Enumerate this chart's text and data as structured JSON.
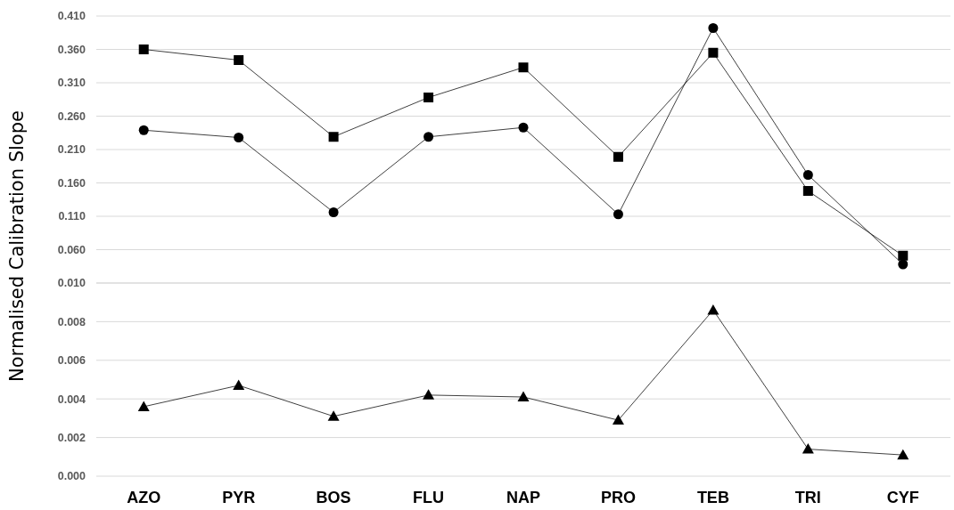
{
  "chart_data": [
    {
      "type": "line",
      "ylabel": "Normalised Calibration Slope",
      "ylim": [
        0.01,
        0.41
      ],
      "yticks": [
        {
          "value": 0.01,
          "label": "0.010"
        },
        {
          "value": 0.06,
          "label": "0.060"
        },
        {
          "value": 0.11,
          "label": "0.110"
        },
        {
          "value": 0.16,
          "label": "0.160"
        },
        {
          "value": 0.21,
          "label": "0.210"
        },
        {
          "value": 0.26,
          "label": "0.260"
        },
        {
          "value": 0.31,
          "label": "0.310"
        },
        {
          "value": 0.36,
          "label": "0.360"
        },
        {
          "value": 0.41,
          "label": "0.410"
        }
      ],
      "grid": "y",
      "tick_labels": "y",
      "series": [
        {
          "color": "#000000",
          "marker": "square",
          "values": [
            0.36,
            0.344,
            0.229,
            0.288,
            0.333,
            0.199,
            0.355,
            0.148,
            0.051
          ]
        },
        {
          "color": "#000000",
          "marker": "circle",
          "values": [
            0.239,
            0.228,
            0.116,
            0.229,
            0.243,
            0.113,
            0.392,
            0.172,
            0.038
          ]
        }
      ]
    },
    {
      "type": "line",
      "categories": [
        "AZO",
        "PYR",
        "BOS",
        "FLU",
        "NAP",
        "PRO",
        "TEB",
        "TRI",
        "CYF"
      ],
      "ylim": [
        0,
        0.01
      ],
      "yticks": [
        {
          "value": 0,
          "label": "0.000"
        },
        {
          "value": 0.002,
          "label": "0.002"
        },
        {
          "value": 0.004,
          "label": "0.004"
        },
        {
          "value": 0.006,
          "label": "0.006"
        },
        {
          "value": 0.008,
          "label": "0.008"
        },
        {
          "value": 0.01,
          "label": null
        }
      ],
      "grid": "y",
      "series": [
        {
          "color": "#000000",
          "marker": "triangle",
          "values": [
            0.0036,
            0.0047,
            0.0031,
            0.0042,
            0.0041,
            0.0029,
            0.0086,
            0.0014,
            0.0011
          ]
        }
      ]
    }
  ]
}
